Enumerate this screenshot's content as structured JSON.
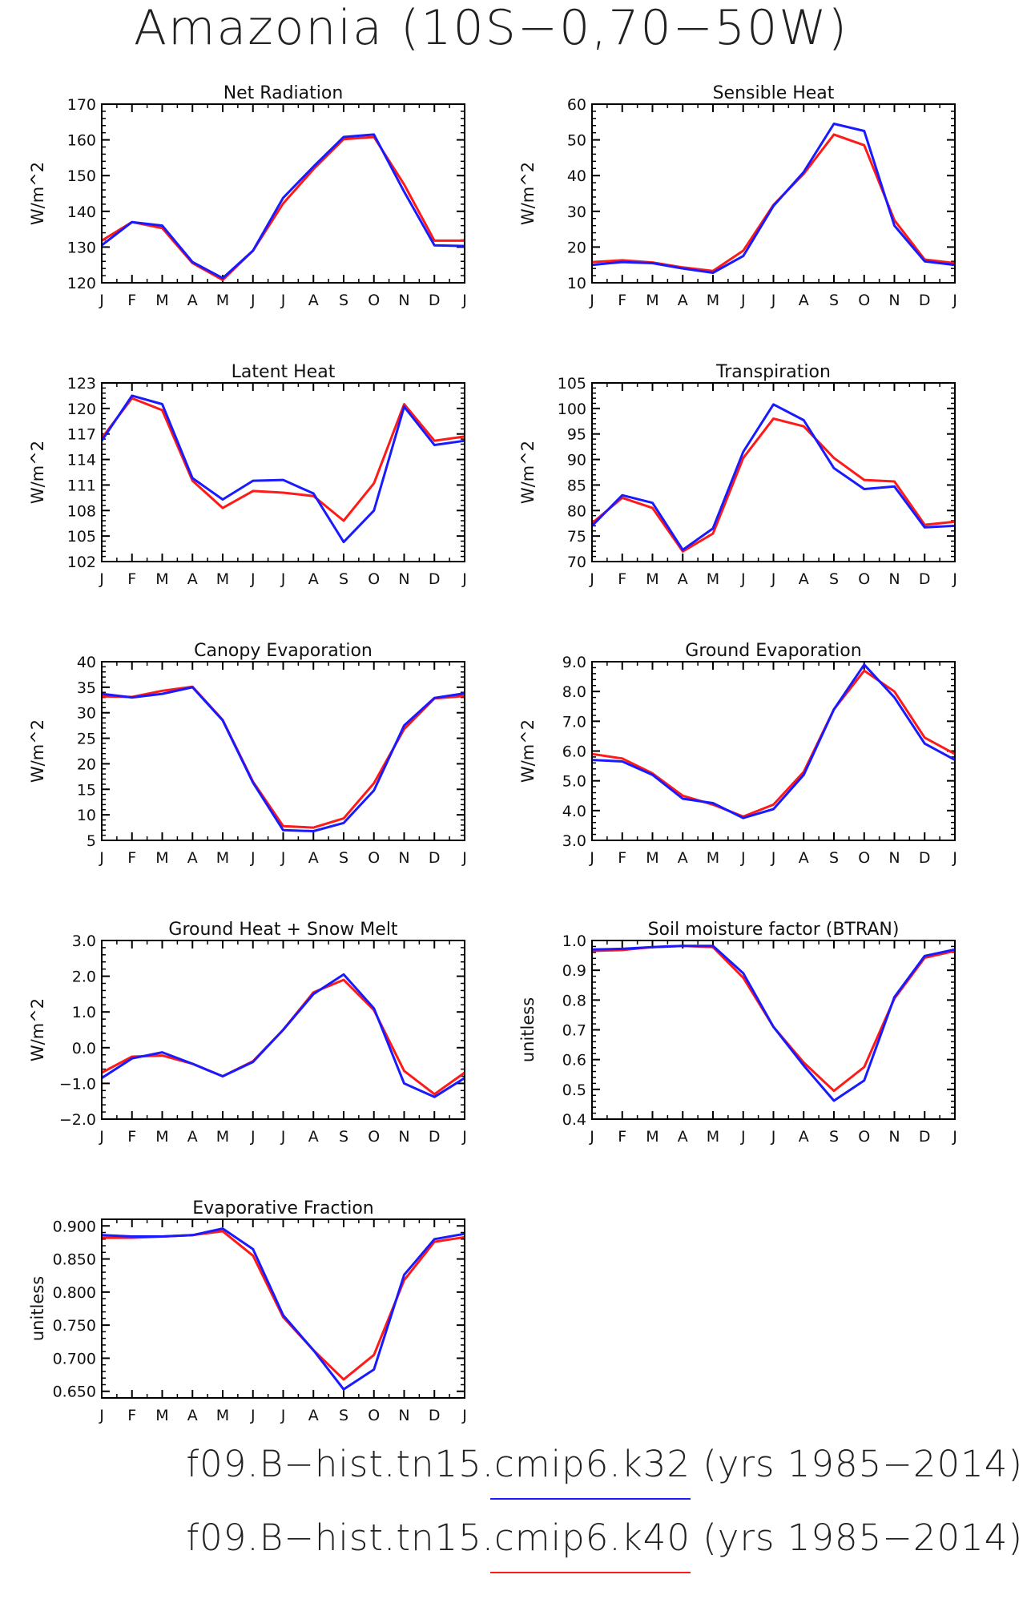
{
  "title": "Amazonia (10S−0,70−50W)",
  "months": [
    "J",
    "F",
    "M",
    "A",
    "M",
    "J",
    "J",
    "A",
    "S",
    "O",
    "N",
    "D",
    "J"
  ],
  "legend": [
    {
      "label": "f09.B−hist.tn15.cmip6.k32 (yrs 1985−2014)",
      "color": "#1a1aff"
    },
    {
      "label": "f09.B−hist.tn15.cmip6.k40 (yrs 1985−2014)",
      "color": "#ff1a1a"
    }
  ],
  "colors": {
    "k32": "#1a1aff",
    "k40": "#ff1a1a",
    "axis": "#000000"
  },
  "chart_data": [
    {
      "type": "line",
      "title": "Net Radiation",
      "ylabel": "W/m^2",
      "ylim": [
        120,
        170
      ],
      "yticks": [
        "120",
        "130",
        "140",
        "150",
        "160",
        "170"
      ],
      "x": [
        "J",
        "F",
        "M",
        "A",
        "M",
        "J",
        "J",
        "A",
        "S",
        "O",
        "N",
        "D",
        "J"
      ],
      "series": [
        {
          "name": "f09.B−hist.tn15.cmip6.k32",
          "color": "#1a1aff",
          "values": [
            130.5,
            137,
            136,
            125.8,
            121.3,
            129,
            143.8,
            152.5,
            160.8,
            161.5,
            145.5,
            130.5,
            130.3
          ]
        },
        {
          "name": "f09.B−hist.tn15.cmip6.k40",
          "color": "#ff1a1a",
          "values": [
            131.8,
            137,
            135.3,
            125.5,
            120.8,
            129,
            142.2,
            151.8,
            160.2,
            160.8,
            147.5,
            131.8,
            131.8
          ]
        }
      ]
    },
    {
      "type": "line",
      "title": "Sensible Heat",
      "ylabel": "W/m^2",
      "ylim": [
        10,
        60
      ],
      "yticks": [
        "10",
        "20",
        "30",
        "40",
        "50",
        "60"
      ],
      "x": [
        "J",
        "F",
        "M",
        "A",
        "M",
        "J",
        "J",
        "A",
        "S",
        "O",
        "N",
        "D",
        "J"
      ],
      "series": [
        {
          "name": "f09.B−hist.tn15.cmip6.k32",
          "color": "#1a1aff",
          "values": [
            15,
            15.8,
            15.5,
            14,
            12.8,
            17.5,
            31.5,
            41,
            54.5,
            52.5,
            26,
            16,
            15
          ]
        },
        {
          "name": "f09.B−hist.tn15.cmip6.k40",
          "color": "#ff1a1a",
          "values": [
            15.8,
            16.3,
            15.7,
            14.3,
            13.3,
            19,
            31.8,
            40.5,
            51.5,
            48.5,
            27.5,
            16.5,
            15.5
          ]
        }
      ]
    },
    {
      "type": "line",
      "title": "Latent Heat",
      "ylabel": "W/m^2",
      "ylim": [
        102,
        123
      ],
      "yticks": [
        "102",
        "105",
        "108",
        "111",
        "114",
        "117",
        "120",
        "123"
      ],
      "x": [
        "J",
        "F",
        "M",
        "A",
        "M",
        "J",
        "J",
        "A",
        "S",
        "O",
        "N",
        "D",
        "J"
      ],
      "series": [
        {
          "name": "f09.B−hist.tn15.cmip6.k32",
          "color": "#1a1aff",
          "values": [
            116.2,
            121.5,
            120.5,
            111.8,
            109.3,
            111.5,
            111.6,
            110,
            104.3,
            108,
            120.2,
            115.7,
            116.2
          ]
        },
        {
          "name": "f09.B−hist.tn15.cmip6.k40",
          "color": "#ff1a1a",
          "values": [
            116.5,
            121.2,
            119.8,
            111.5,
            108.3,
            110.3,
            110.1,
            109.7,
            106.8,
            111.2,
            120.5,
            116.2,
            116.7
          ]
        }
      ]
    },
    {
      "type": "line",
      "title": "Transpiration",
      "ylabel": "W/m^2",
      "ylim": [
        70,
        105
      ],
      "yticks": [
        "70",
        "75",
        "80",
        "85",
        "90",
        "95",
        "100",
        "105"
      ],
      "x": [
        "J",
        "F",
        "M",
        "A",
        "M",
        "J",
        "J",
        "A",
        "S",
        "O",
        "N",
        "D",
        "J"
      ],
      "series": [
        {
          "name": "f09.B−hist.tn15.cmip6.k32",
          "color": "#1a1aff",
          "values": [
            77,
            83,
            81.5,
            72.3,
            76.5,
            91.5,
            100.8,
            97.7,
            88.3,
            84.2,
            84.7,
            76.7,
            77
          ]
        },
        {
          "name": "f09.B−hist.tn15.cmip6.k40",
          "color": "#ff1a1a",
          "values": [
            77.5,
            82.5,
            80.5,
            72,
            75.5,
            90.3,
            98,
            96.5,
            90.3,
            86,
            85.7,
            77.2,
            77.8
          ]
        }
      ]
    },
    {
      "type": "line",
      "title": "Canopy Evaporation",
      "ylabel": "W/m^2",
      "ylim": [
        5,
        40
      ],
      "yticks": [
        "5",
        "10",
        "15",
        "20",
        "25",
        "30",
        "35",
        "40"
      ],
      "x": [
        "J",
        "F",
        "M",
        "A",
        "M",
        "J",
        "J",
        "A",
        "S",
        "O",
        "N",
        "D",
        "J"
      ],
      "series": [
        {
          "name": "f09.B−hist.tn15.cmip6.k32",
          "color": "#1a1aff",
          "values": [
            33.7,
            33,
            33.7,
            35,
            28.5,
            16.3,
            7,
            6.8,
            8.4,
            14.8,
            27.5,
            32.9,
            33.8
          ]
        },
        {
          "name": "f09.B−hist.tn15.cmip6.k40",
          "color": "#ff1a1a",
          "values": [
            33.2,
            33.1,
            34.3,
            35.1,
            28.6,
            16.5,
            7.8,
            7.5,
            9.3,
            16.2,
            26.8,
            32.8,
            33.3
          ]
        }
      ]
    },
    {
      "type": "line",
      "title": "Ground Evaporation",
      "ylabel": "W/m^2",
      "ylim": [
        3.0,
        9.0
      ],
      "yticks": [
        "3.0",
        "4.0",
        "5.0",
        "6.0",
        "7.0",
        "8.0",
        "9.0"
      ],
      "x": [
        "J",
        "F",
        "M",
        "A",
        "M",
        "J",
        "J",
        "A",
        "S",
        "O",
        "N",
        "D",
        "J"
      ],
      "series": [
        {
          "name": "f09.B−hist.tn15.cmip6.k32",
          "color": "#1a1aff",
          "values": [
            5.7,
            5.65,
            5.2,
            4.4,
            4.25,
            3.75,
            4.05,
            5.2,
            7.4,
            8.9,
            7.8,
            6.25,
            5.7
          ]
        },
        {
          "name": "f09.B−hist.tn15.cmip6.k40",
          "color": "#ff1a1a",
          "values": [
            5.9,
            5.75,
            5.25,
            4.5,
            4.2,
            3.8,
            4.2,
            5.3,
            7.4,
            8.7,
            8,
            6.45,
            5.9
          ]
        }
      ]
    },
    {
      "type": "line",
      "title": "Ground Heat + Snow Melt",
      "ylabel": "W/m^2",
      "ylim": [
        -2.0,
        3.0
      ],
      "yticks": [
        "−2.0",
        "−1.0",
        "0.0",
        "1.0",
        "2.0",
        "3.0"
      ],
      "x": [
        "J",
        "F",
        "M",
        "A",
        "M",
        "J",
        "J",
        "A",
        "S",
        "O",
        "N",
        "D",
        "J"
      ],
      "series": [
        {
          "name": "f09.B−hist.tn15.cmip6.k32",
          "color": "#1a1aff",
          "values": [
            -0.85,
            -0.3,
            -0.13,
            -0.45,
            -0.8,
            -0.4,
            0.5,
            1.5,
            2.05,
            1.1,
            -1,
            -1.38,
            -0.85
          ]
        },
        {
          "name": "f09.B−hist.tn15.cmip6.k40",
          "color": "#ff1a1a",
          "values": [
            -0.7,
            -0.25,
            -0.22,
            -0.45,
            -0.8,
            -0.38,
            0.5,
            1.55,
            1.9,
            1.05,
            -0.65,
            -1.3,
            -0.7
          ]
        }
      ]
    },
    {
      "type": "line",
      "title": "Soil moisture factor (BTRAN)",
      "ylabel": "unitless",
      "ylim": [
        0.4,
        1.0
      ],
      "yticks": [
        "0.4",
        "0.5",
        "0.6",
        "0.7",
        "0.8",
        "0.9",
        "1.0"
      ],
      "x": [
        "J",
        "F",
        "M",
        "A",
        "M",
        "J",
        "J",
        "A",
        "S",
        "O",
        "N",
        "D",
        "J"
      ],
      "series": [
        {
          "name": "f09.B−hist.tn15.cmip6.k32",
          "color": "#1a1aff",
          "values": [
            0.97,
            0.972,
            0.978,
            0.982,
            0.982,
            0.89,
            0.71,
            0.58,
            0.462,
            0.53,
            0.81,
            0.948,
            0.97
          ]
        },
        {
          "name": "f09.B−hist.tn15.cmip6.k40",
          "color": "#ff1a1a",
          "values": [
            0.965,
            0.968,
            0.978,
            0.982,
            0.978,
            0.875,
            0.71,
            0.59,
            0.495,
            0.575,
            0.805,
            0.942,
            0.965
          ]
        }
      ]
    },
    {
      "type": "line",
      "title": "Evaporative Fraction",
      "ylabel": "unitless",
      "ylim": [
        0.64,
        0.91
      ],
      "yticks": [
        "0.650",
        "0.700",
        "0.750",
        "0.800",
        "0.850",
        "0.900"
      ],
      "x": [
        "J",
        "F",
        "M",
        "A",
        "M",
        "J",
        "J",
        "A",
        "S",
        "O",
        "N",
        "D",
        "J"
      ],
      "series": [
        {
          "name": "f09.B−hist.tn15.cmip6.k32",
          "color": "#1a1aff",
          "values": [
            0.886,
            0.884,
            0.884,
            0.886,
            0.896,
            0.865,
            0.765,
            0.712,
            0.653,
            0.683,
            0.826,
            0.88,
            0.888
          ]
        },
        {
          "name": "f09.B−hist.tn15.cmip6.k40",
          "color": "#ff1a1a",
          "values": [
            0.882,
            0.882,
            0.884,
            0.886,
            0.892,
            0.855,
            0.762,
            0.712,
            0.668,
            0.705,
            0.818,
            0.876,
            0.883
          ]
        }
      ]
    }
  ]
}
